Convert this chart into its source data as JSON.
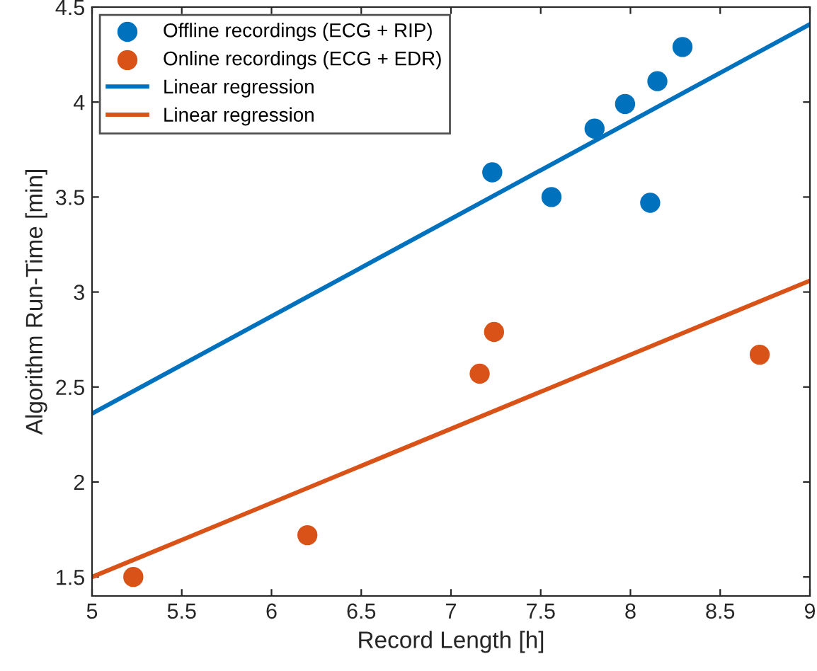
{
  "chart_data": {
    "type": "scatter",
    "xlabel": "Record Length [h]",
    "ylabel": "Algorithm Run-Time [min]",
    "xlim": [
      5,
      9
    ],
    "ylim": [
      1.4,
      4.5
    ],
    "xticks": [
      5,
      5.5,
      6,
      6.5,
      7,
      7.5,
      8,
      8.5,
      9
    ],
    "yticks": [
      1.5,
      2,
      2.5,
      3,
      3.5,
      4,
      4.5
    ],
    "grid": false,
    "legend": "top left",
    "series": [
      {
        "name": "Offline recordings (ECG + RIP)",
        "marker": "circle",
        "color": "#0072bd",
        "x": [
          7.23,
          7.56,
          7.8,
          7.97,
          8.15,
          8.29,
          8.11
        ],
        "values": [
          3.63,
          3.5,
          3.86,
          3.99,
          4.11,
          4.29,
          3.47
        ]
      },
      {
        "name": "Online recordings (ECG + EDR)",
        "marker": "circle",
        "color": "#d95319",
        "x": [
          5.23,
          6.2,
          7.16,
          7.24,
          8.72
        ],
        "values": [
          1.5,
          1.72,
          2.57,
          2.79,
          2.67
        ]
      },
      {
        "name": "Linear regression",
        "type": "line",
        "marker": "none",
        "color": "#0072bd",
        "x": [
          5,
          9
        ],
        "values": [
          2.36,
          4.41
        ]
      },
      {
        "name": "Linear regression",
        "type": "line",
        "marker": "none",
        "color": "#d95319",
        "x": [
          5,
          9
        ],
        "values": [
          1.5,
          3.06
        ]
      }
    ]
  }
}
